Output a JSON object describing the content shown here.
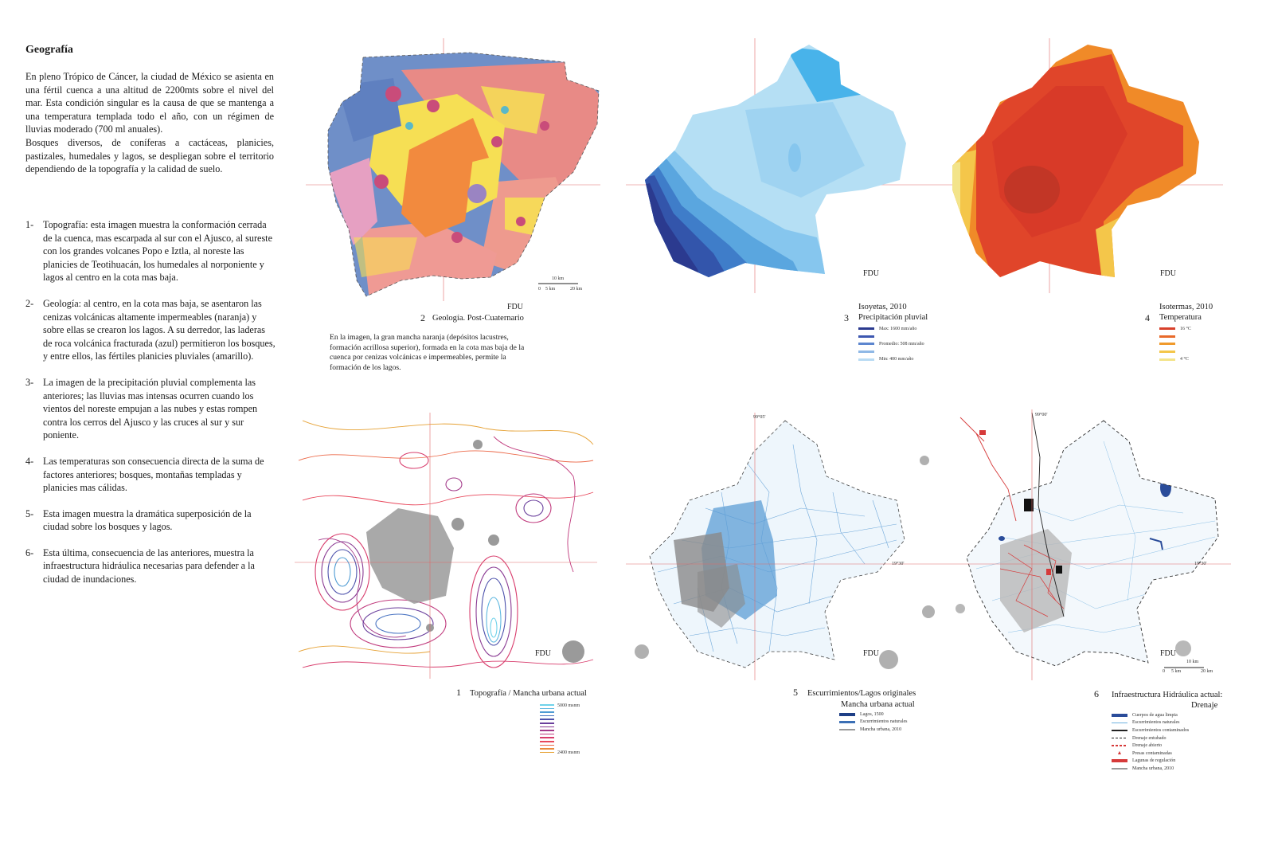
{
  "heading": "Geografía",
  "intro": [
    "En pleno Trópico de Cáncer, la ciudad de México se asienta en una fértil cuenca a una altitud de 2200mts sobre el nivel del mar. Esta condición singular es la causa de que se mantenga a una temperatura templada todo el año, con un régimen de lluvias moderado (700 ml anuales).",
    "Bosques diversos, de coníferas a cactáceas, planicies, pastizales, humedales y lagos, se despliegan sobre el territorio dependiendo de la topografía y la calidad de suelo."
  ],
  "list": [
    {
      "num": "1-",
      "text": "Topografía: esta imagen muestra la conformación cerrada de la cuenca, mas escarpada al sur con el Ajusco, al sureste con los grandes volcanes Popo e Iztla, al noreste las planicies de Teotihuacán, los humedales al norponiente y lagos al centro en la cota mas baja."
    },
    {
      "num": "2-",
      "text": "Geología: al centro, en la cota mas baja, se asentaron las cenizas volcánicas altamente impermeables (naranja) y sobre ellas se crearon los lagos. A su derredor, las laderas de roca volcánica fracturada (azul) permitieron los bosques, y entre ellos, las fértiles planicies pluviales (amarillo)."
    },
    {
      "num": "3-",
      "text": "La imagen de la precipitación pluvial complementa las anteriores; las lluvias mas intensas ocurren cuando los vientos del noreste empujan a las nubes y estas rompen contra los cerros del Ajusco y las cruces al sur y sur poniente."
    },
    {
      "num": "4-",
      "text": "Las temperaturas son consecuencia directa de la suma de factores anteriores; bosques, montañas templadas y planicies mas cálidas."
    },
    {
      "num": "5-",
      "text": "Esta imagen muestra la dramática superposición de la ciudad sobre los bosques y lagos."
    },
    {
      "num": "6-",
      "text": "Esta última, consecuencia de las anteriores, muestra la infraestructura hidráulica necesarias para defender a la ciudad de inundaciones."
    }
  ],
  "maps": {
    "geologia": {
      "fdu": "FDU",
      "num": "2",
      "caption": "Geología. Post-Cuaternario",
      "scale": {
        "top": "10 km",
        "l0": "0",
        "l5": "5 km",
        "l20": "20 km"
      },
      "description": "En la imagen, la gran mancha naranja (depósitos lacustres, formación acrillosa superior), formada en la cota mas baja de la cuenca por cenizas volcánicas e impermeables, permite la formación de los lagos."
    },
    "isoyetas": {
      "fdu": "FDU",
      "num": "3",
      "caption1": "Isoyetas, 2010",
      "caption2": "Precipitación pluvial",
      "legend": [
        {
          "label": "Max: 1600 mm/año",
          "color": "#2b3a8f"
        },
        {
          "label": "",
          "color": "#3d57b0"
        },
        {
          "label": "Promedio: 508 mm/año",
          "color": "#5d86cf"
        },
        {
          "label": "",
          "color": "#8fb8e6"
        },
        {
          "label": "Min: 400 mm/año",
          "color": "#b9dbf3"
        }
      ]
    },
    "isotermas": {
      "fdu": "FDU",
      "num": "4",
      "caption1": "Isotermas, 2010",
      "caption2": "Temperatura",
      "legend": [
        {
          "label": "16 °C",
          "color": "#d8412b"
        },
        {
          "label": "",
          "color": "#e86a2a"
        },
        {
          "label": "",
          "color": "#f09a2c"
        },
        {
          "label": "",
          "color": "#f4c64a"
        },
        {
          "label": "4 °C",
          "color": "#f3e48a"
        }
      ]
    },
    "topografia": {
      "fdu": "FDU",
      "num": "1",
      "caption": "Topografía / Mancha urbana actual",
      "legend_top": "5000 msnm",
      "legend_bottom": "2400 msnm",
      "legend_colors": [
        "#6fd2ea",
        "#5fb8e0",
        "#4e9bd3",
        "#4a74c2",
        "#4d52ac",
        "#6a3f9c",
        "#8a3b93",
        "#a33a8a",
        "#c03a7d",
        "#d83c6c",
        "#e8485c",
        "#ec6a4a",
        "#e98a3c",
        "#e6a236"
      ]
    },
    "escurrimientos": {
      "fdu": "FDU",
      "num": "5",
      "caption1": "Escurrimientos/Lagos originales",
      "caption2": "Mancha urbana actual",
      "legend": [
        {
          "label": "Lagos, 1500",
          "color": "#1e3f86"
        },
        {
          "label": "Escurrimientos naturales",
          "color": "#3b6fb5"
        },
        {
          "label": "Mancha urbana, 2010",
          "color": "#9a9a9a"
        }
      ]
    },
    "infraestructura": {
      "fdu": "FDU",
      "num": "6",
      "caption1": "Infraestructura Hidráulica actual:",
      "caption2": "Drenaje",
      "scale": {
        "top": "10 km",
        "l0": "0",
        "l5": "5 km",
        "l20": "20 km"
      },
      "legend": [
        {
          "label": "Cuerpos de agua limpia",
          "color": "#2a4c9a"
        },
        {
          "label": "Escurrimientos naturales",
          "color": "#6fb3e0"
        },
        {
          "label": "Escurrimientos contaminados",
          "color": "#222222"
        },
        {
          "label": "Drenaje entubado",
          "color": "#222222"
        },
        {
          "label": "Drenaje abierto",
          "color": "#d63a3a"
        },
        {
          "label": "Presas contaminadas",
          "color": "#d63a3a"
        },
        {
          "label": "Lagunas de regulación",
          "color": "#d63a3a"
        },
        {
          "label": "Mancha urbana, 2010",
          "color": "#9a9a9a"
        }
      ]
    }
  },
  "coord_labels": {
    "c1": "99°05'",
    "c2": "99°00'",
    "c3": "19°30'",
    "c4": "19°30'"
  }
}
